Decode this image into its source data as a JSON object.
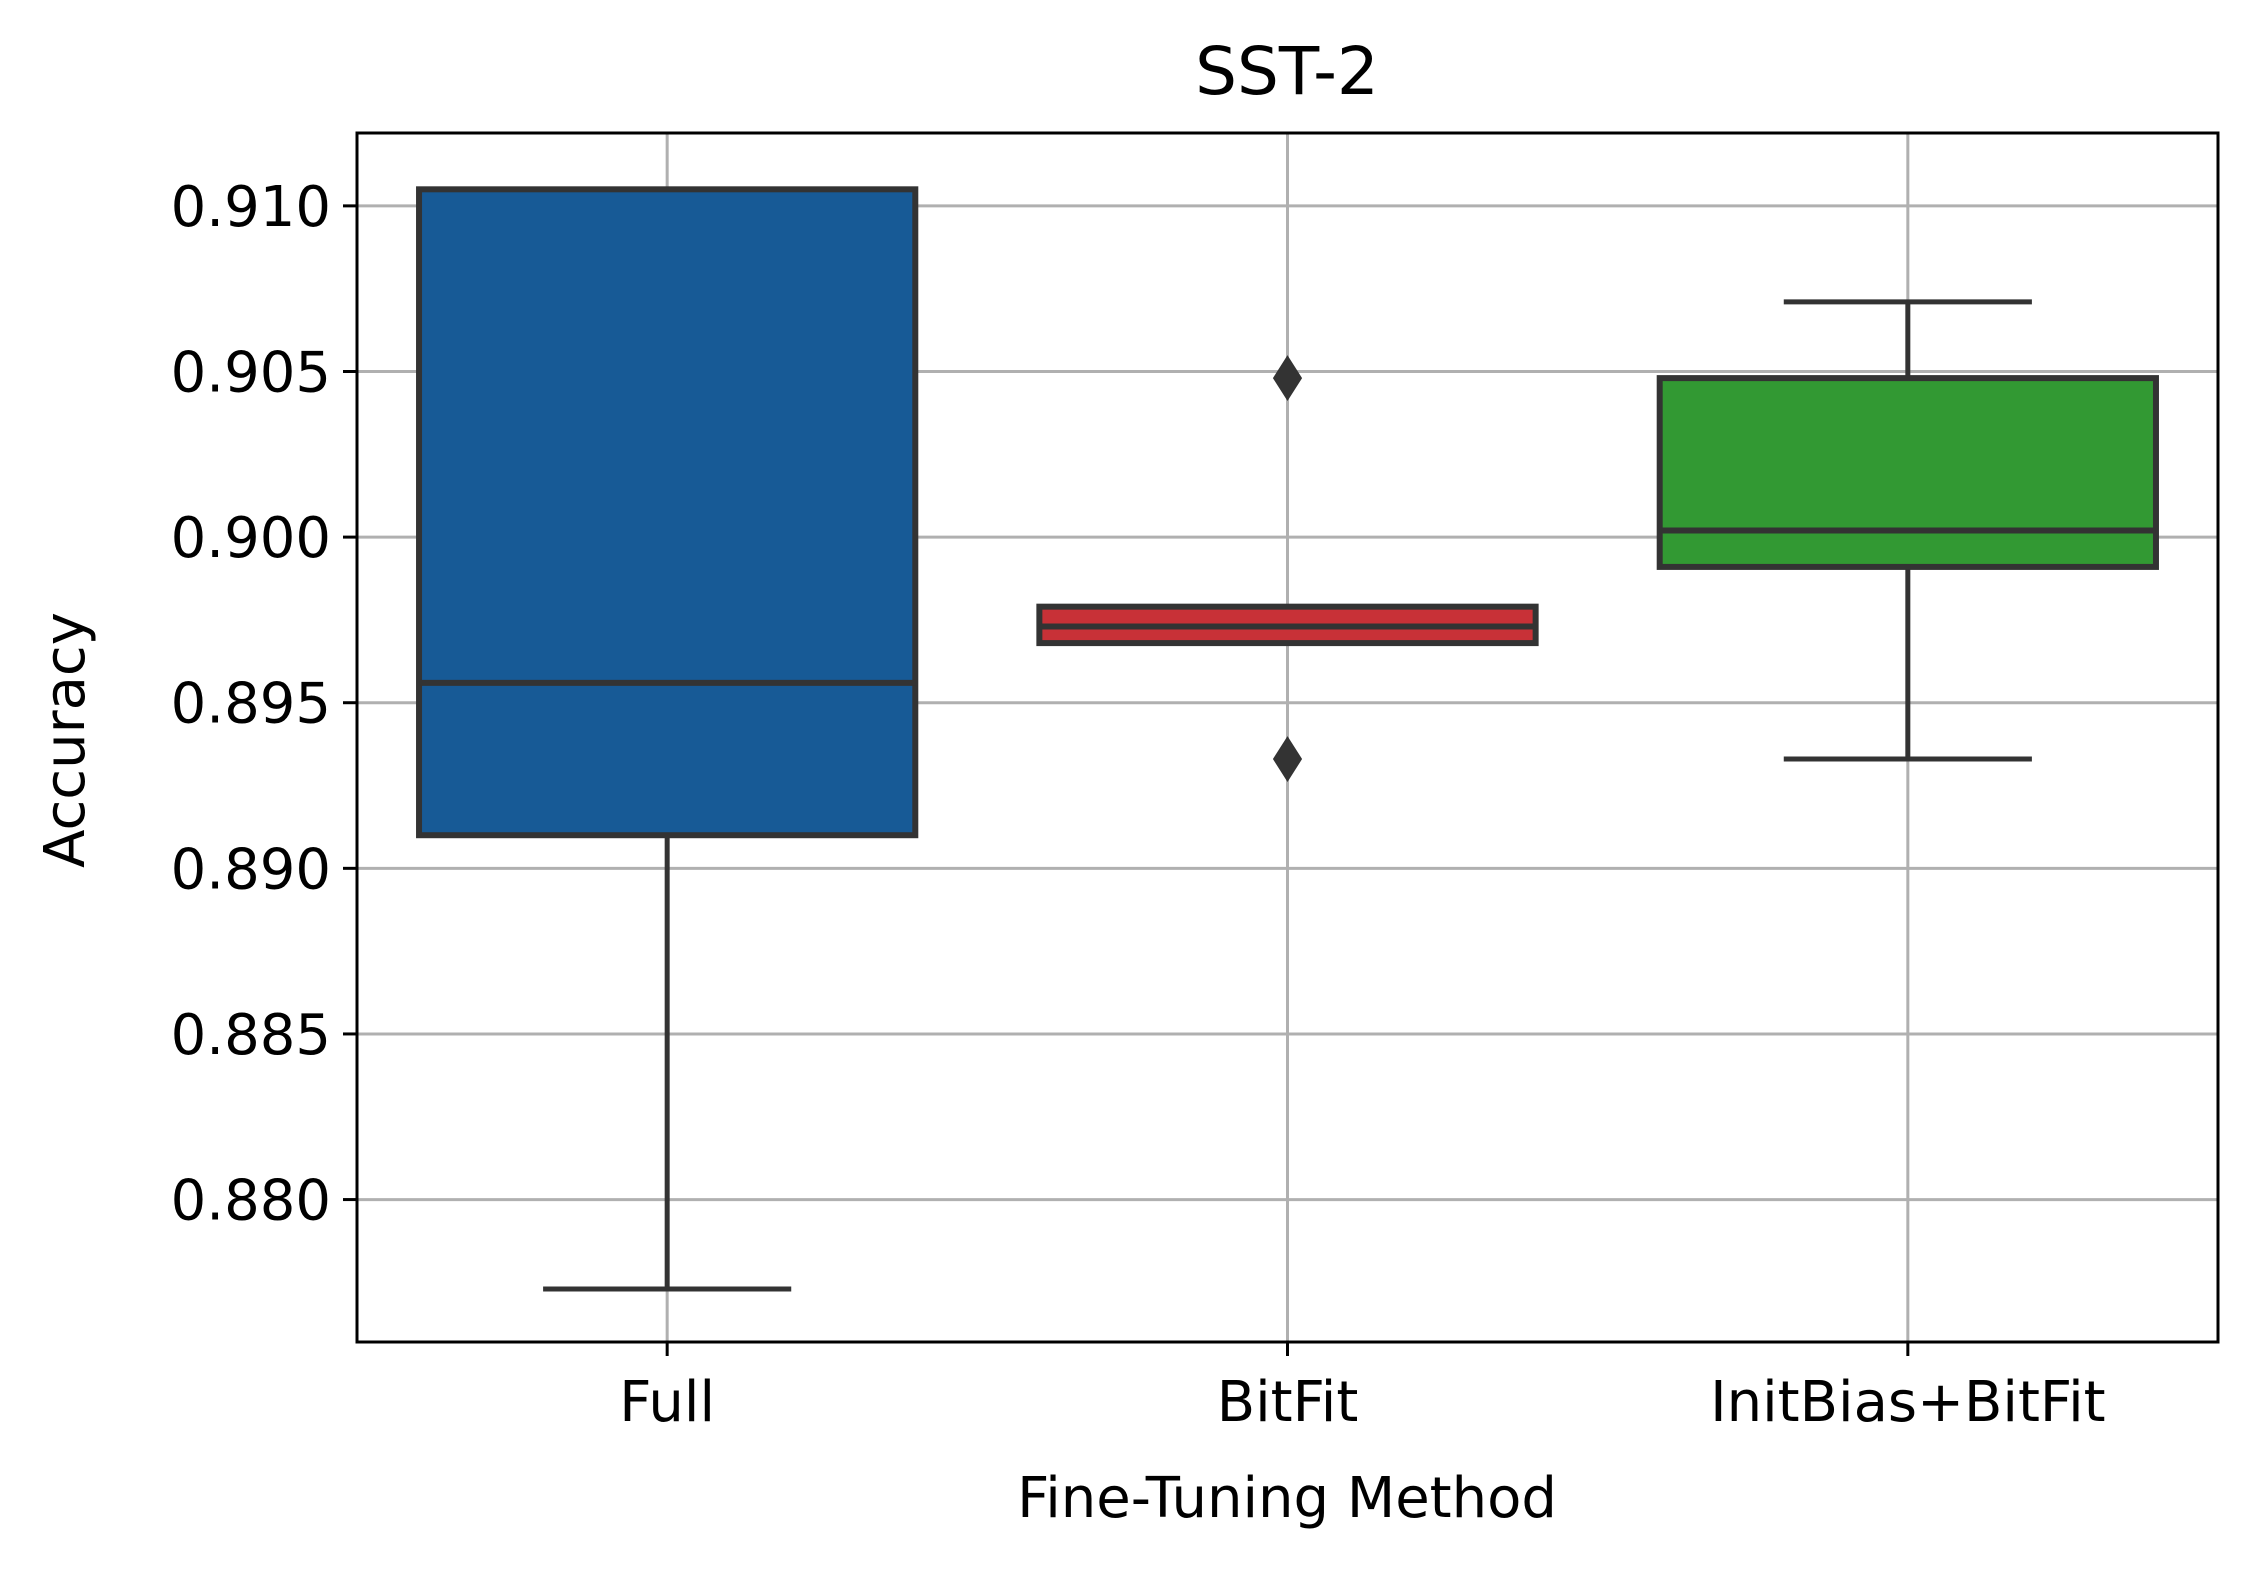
{
  "chart_data": {
    "type": "box",
    "title": "SST-2",
    "xlabel": "Fine-Tuning Method",
    "ylabel": "Accuracy",
    "ylim": [
      0.8757,
      0.9122
    ],
    "yticks": [
      0.88,
      0.885,
      0.89,
      0.895,
      0.9,
      0.905,
      0.91
    ],
    "ytick_labels": [
      "0.880",
      "0.885",
      "0.890",
      "0.895",
      "0.900",
      "0.905",
      "0.910"
    ],
    "grid": true,
    "categories": [
      "Full",
      "BitFit",
      "InitBias+BitFit"
    ],
    "boxes": [
      {
        "name": "Full",
        "color": "#175a96",
        "whisker_low": 0.8773,
        "q1": 0.891,
        "median": 0.8956,
        "q3": 0.9105,
        "whisker_high": 0.9105,
        "outliers": []
      },
      {
        "name": "BitFit",
        "color": "#c83137",
        "whisker_low": 0.8968,
        "q1": 0.8968,
        "median": 0.8973,
        "q3": 0.8979,
        "whisker_high": 0.8979,
        "outliers": [
          0.9048,
          0.8933
        ]
      },
      {
        "name": "InitBias+BitFit",
        "color": "#329933",
        "whisker_low": 0.8933,
        "q1": 0.8991,
        "median": 0.9002,
        "q3": 0.9048,
        "whisker_high": 0.9071,
        "outliers": []
      }
    ]
  }
}
